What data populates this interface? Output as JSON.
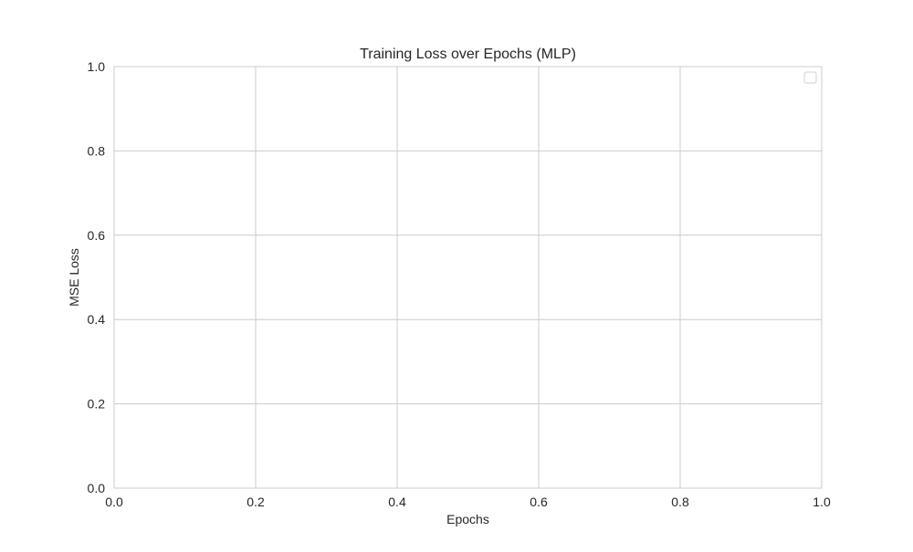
{
  "chart_data": {
    "type": "line",
    "title": "Training Loss over Epochs (MLP)",
    "xlabel": "Epochs",
    "ylabel": "MSE Loss",
    "xlim": [
      0.0,
      1.0
    ],
    "ylim": [
      0.0,
      1.0
    ],
    "xticks": [
      0.0,
      0.2,
      0.4,
      0.6,
      0.8,
      1.0
    ],
    "yticks": [
      0.0,
      0.2,
      0.4,
      0.6,
      0.8,
      1.0
    ],
    "xtick_labels": [
      "0.0",
      "0.2",
      "0.4",
      "0.6",
      "0.8",
      "1.0"
    ],
    "ytick_labels": [
      "0.0",
      "0.2",
      "0.4",
      "0.6",
      "0.8",
      "1.0"
    ],
    "grid": true,
    "legend_placement": "top-right",
    "series": [],
    "colors": {
      "grid": "#cccccc",
      "spine": "#cccccc",
      "text": "#262626",
      "background": "#ffffff"
    }
  }
}
